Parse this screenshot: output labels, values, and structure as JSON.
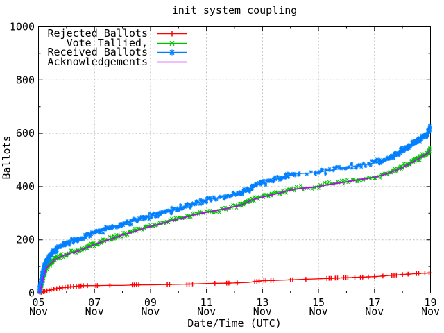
{
  "chart_data": {
    "type": "line",
    "title": "init system coupling",
    "xlabel": "Date/Time (UTC)",
    "ylabel": "Ballots",
    "ylim": [
      0,
      1000
    ],
    "x_range_days": [
      0,
      14
    ],
    "grid": true,
    "grid_color": "#b5b5b5",
    "axis_color": "#000000",
    "legend_position": "top-left-inside",
    "yticks": {
      "major": [
        0,
        200,
        400,
        600,
        800,
        1000
      ],
      "minor": [
        100,
        300,
        500,
        700,
        900
      ]
    },
    "xticks": {
      "major": [
        {
          "day": 0,
          "label": [
            "05",
            "Nov"
          ]
        },
        {
          "day": 2,
          "label": [
            "07",
            "Nov"
          ]
        },
        {
          "day": 4,
          "label": [
            "09",
            "Nov"
          ]
        },
        {
          "day": 6,
          "label": [
            "11",
            "Nov"
          ]
        },
        {
          "day": 8,
          "label": [
            "13",
            "Nov"
          ]
        },
        {
          "day": 10,
          "label": [
            "15",
            "Nov"
          ]
        },
        {
          "day": 12,
          "label": [
            "17",
            "Nov"
          ]
        },
        {
          "day": 14,
          "label": [
            "19",
            "Nov"
          ]
        }
      ],
      "minor_days": [
        1,
        3,
        5,
        7,
        9,
        11,
        13
      ]
    },
    "series": [
      {
        "name": "Rejected Ballots",
        "color": "#ff0000",
        "marker": "plus",
        "style": "line-with-event-markers",
        "points": [
          [
            0,
            0
          ],
          [
            0.1,
            3
          ],
          [
            0.2,
            6
          ],
          [
            0.35,
            10
          ],
          [
            0.5,
            14
          ],
          [
            0.65,
            17
          ],
          [
            0.8,
            20
          ],
          [
            1.0,
            22
          ],
          [
            1.2,
            24
          ],
          [
            1.4,
            26
          ],
          [
            1.6,
            28
          ],
          [
            1.8,
            28
          ],
          [
            2.0,
            28
          ],
          [
            2.5,
            29
          ],
          [
            3.0,
            29
          ],
          [
            3.5,
            31
          ],
          [
            4.0,
            31
          ],
          [
            4.5,
            32
          ],
          [
            5.0,
            33
          ],
          [
            5.5,
            34
          ],
          [
            6.0,
            36
          ],
          [
            6.5,
            37
          ],
          [
            7.0,
            38
          ],
          [
            7.5,
            40
          ],
          [
            7.7,
            43
          ],
          [
            8.0,
            47
          ],
          [
            8.5,
            48
          ],
          [
            9.0,
            50
          ],
          [
            9.5,
            52
          ],
          [
            10.0,
            54
          ],
          [
            10.5,
            56
          ],
          [
            11.0,
            58
          ],
          [
            11.5,
            60
          ],
          [
            12.0,
            62
          ],
          [
            12.3,
            64
          ],
          [
            12.6,
            67
          ],
          [
            13.0,
            70
          ],
          [
            13.3,
            72
          ],
          [
            13.6,
            74
          ],
          [
            14.0,
            76
          ]
        ],
        "marker_days": [
          0.05,
          0.1,
          0.17,
          0.22,
          0.3,
          0.38,
          0.45,
          0.55,
          0.65,
          0.75,
          0.85,
          0.95,
          1.05,
          1.15,
          1.25,
          1.35,
          1.45,
          1.52,
          1.6,
          1.75,
          2.05,
          2.1,
          2.55,
          3.35,
          3.42,
          3.5,
          3.58,
          4.6,
          4.68,
          5.3,
          5.38,
          5.5,
          6.3,
          6.72,
          6.8,
          7.1,
          7.72,
          7.8,
          7.88,
          8.05,
          8.12,
          8.3,
          8.38,
          9.0,
          9.08,
          9.55,
          10.3,
          10.38,
          10.45,
          10.6,
          10.68,
          10.9,
          10.98,
          11.05,
          11.3,
          11.5,
          11.58,
          11.78,
          12.0,
          12.3,
          12.62,
          12.7,
          12.78,
          13.0,
          13.2,
          13.5,
          13.58,
          13.8,
          13.95
        ]
      },
      {
        "name": "Vote Tallied,",
        "color": "#00c000",
        "marker": "cross",
        "style": "dense-band",
        "points": [
          [
            0,
            0
          ],
          [
            0.05,
            10
          ],
          [
            0.1,
            28
          ],
          [
            0.15,
            52
          ],
          [
            0.2,
            72
          ],
          [
            0.25,
            88
          ],
          [
            0.3,
            98
          ],
          [
            0.4,
            110
          ],
          [
            0.5,
            120
          ],
          [
            0.6,
            128
          ],
          [
            0.7,
            134
          ],
          [
            0.85,
            141
          ],
          [
            1.0,
            147
          ],
          [
            1.15,
            152
          ],
          [
            1.3,
            156
          ],
          [
            1.45,
            161
          ],
          [
            1.6,
            167
          ],
          [
            1.75,
            173
          ],
          [
            1.9,
            180
          ],
          [
            2.0,
            185
          ],
          [
            2.2,
            192
          ],
          [
            2.4,
            199
          ],
          [
            2.6,
            206
          ],
          [
            2.8,
            213
          ],
          [
            3.0,
            220
          ],
          [
            3.2,
            226
          ],
          [
            3.4,
            232
          ],
          [
            3.6,
            239
          ],
          [
            3.8,
            246
          ],
          [
            4.0,
            252
          ],
          [
            4.2,
            257
          ],
          [
            4.4,
            263
          ],
          [
            4.6,
            269
          ],
          [
            4.8,
            275
          ],
          [
            5.0,
            280
          ],
          [
            5.2,
            285
          ],
          [
            5.4,
            291
          ],
          [
            5.6,
            296
          ],
          [
            5.8,
            301
          ],
          [
            6.0,
            305
          ],
          [
            6.2,
            309
          ],
          [
            6.4,
            313
          ],
          [
            6.6,
            317
          ],
          [
            6.8,
            321
          ],
          [
            7.0,
            326
          ],
          [
            7.2,
            331
          ],
          [
            7.4,
            340
          ],
          [
            7.6,
            350
          ],
          [
            7.8,
            357
          ],
          [
            8.0,
            362
          ],
          [
            8.2,
            367
          ],
          [
            8.4,
            372
          ],
          [
            8.6,
            377
          ],
          [
            8.8,
            383
          ],
          [
            9.0,
            388
          ],
          [
            9.2,
            392
          ],
          [
            9.4,
            395
          ],
          [
            9.6,
            397
          ],
          [
            9.8,
            399
          ],
          [
            10.0,
            402
          ],
          [
            10.2,
            406
          ],
          [
            10.4,
            410
          ],
          [
            10.6,
            413
          ],
          [
            10.8,
            416
          ],
          [
            11.0,
            419
          ],
          [
            11.2,
            423
          ],
          [
            11.4,
            427
          ],
          [
            11.6,
            430
          ],
          [
            11.8,
            433
          ],
          [
            12.0,
            437
          ],
          [
            12.2,
            442
          ],
          [
            12.4,
            448
          ],
          [
            12.6,
            456
          ],
          [
            12.8,
            464
          ],
          [
            13.0,
            474
          ],
          [
            13.2,
            484
          ],
          [
            13.4,
            495
          ],
          [
            13.6,
            508
          ],
          [
            13.8,
            520
          ],
          [
            13.9,
            527
          ],
          [
            14.0,
            540
          ]
        ]
      },
      {
        "name": "Received Ballots",
        "color": "#0080ff",
        "marker": "star",
        "style": "dense-band",
        "points": [
          [
            0,
            0
          ],
          [
            0.05,
            15
          ],
          [
            0.1,
            42
          ],
          [
            0.15,
            70
          ],
          [
            0.2,
            96
          ],
          [
            0.25,
            112
          ],
          [
            0.3,
            122
          ],
          [
            0.4,
            140
          ],
          [
            0.5,
            155
          ],
          [
            0.6,
            163
          ],
          [
            0.7,
            170
          ],
          [
            0.85,
            179
          ],
          [
            1.0,
            188
          ],
          [
            1.15,
            194
          ],
          [
            1.3,
            198
          ],
          [
            1.45,
            204
          ],
          [
            1.6,
            210
          ],
          [
            1.75,
            216
          ],
          [
            1.9,
            221
          ],
          [
            2.0,
            225
          ],
          [
            2.2,
            232
          ],
          [
            2.4,
            240
          ],
          [
            2.6,
            247
          ],
          [
            2.8,
            252
          ],
          [
            3.0,
            257
          ],
          [
            3.2,
            263
          ],
          [
            3.4,
            270
          ],
          [
            3.6,
            276
          ],
          [
            3.8,
            282
          ],
          [
            4.0,
            288
          ],
          [
            4.2,
            293
          ],
          [
            4.4,
            300
          ],
          [
            4.6,
            306
          ],
          [
            4.8,
            312
          ],
          [
            5.0,
            318
          ],
          [
            5.2,
            324
          ],
          [
            5.4,
            331
          ],
          [
            5.6,
            337
          ],
          [
            5.8,
            343
          ],
          [
            6.0,
            348
          ],
          [
            6.2,
            353
          ],
          [
            6.4,
            358
          ],
          [
            6.6,
            362
          ],
          [
            6.8,
            366
          ],
          [
            7.0,
            370
          ],
          [
            7.2,
            375
          ],
          [
            7.4,
            385
          ],
          [
            7.6,
            395
          ],
          [
            7.8,
            407
          ],
          [
            8.0,
            413
          ],
          [
            8.2,
            419
          ],
          [
            8.4,
            425
          ],
          [
            8.6,
            430
          ],
          [
            8.8,
            437
          ],
          [
            9.0,
            443
          ],
          [
            9.2,
            447
          ],
          [
            9.4,
            449
          ],
          [
            9.6,
            450
          ],
          [
            9.8,
            451
          ],
          [
            10.0,
            453
          ],
          [
            10.2,
            457
          ],
          [
            10.4,
            461
          ],
          [
            10.6,
            464
          ],
          [
            10.8,
            467
          ],
          [
            11.0,
            470
          ],
          [
            11.2,
            475
          ],
          [
            11.4,
            479
          ],
          [
            11.6,
            482
          ],
          [
            11.8,
            485
          ],
          [
            12.0,
            489
          ],
          [
            12.2,
            495
          ],
          [
            12.4,
            502
          ],
          [
            12.6,
            511
          ],
          [
            12.8,
            522
          ],
          [
            13.0,
            535
          ],
          [
            13.2,
            548
          ],
          [
            13.4,
            562
          ],
          [
            13.6,
            578
          ],
          [
            13.8,
            592
          ],
          [
            13.9,
            600
          ],
          [
            14.0,
            622
          ]
        ]
      },
      {
        "name": "Acknowledgements",
        "color": "#c000ff",
        "marker": "none",
        "style": "line",
        "points": [
          [
            0,
            0
          ],
          [
            0.05,
            9
          ],
          [
            0.1,
            26
          ],
          [
            0.15,
            50
          ],
          [
            0.2,
            70
          ],
          [
            0.25,
            86
          ],
          [
            0.3,
            96
          ],
          [
            0.4,
            108
          ],
          [
            0.5,
            118
          ],
          [
            0.6,
            126
          ],
          [
            0.7,
            132
          ],
          [
            0.85,
            139
          ],
          [
            1.0,
            145
          ],
          [
            1.15,
            150
          ],
          [
            1.3,
            154
          ],
          [
            1.45,
            159
          ],
          [
            1.6,
            165
          ],
          [
            1.75,
            171
          ],
          [
            1.9,
            178
          ],
          [
            2.0,
            183
          ],
          [
            2.2,
            190
          ],
          [
            2.4,
            197
          ],
          [
            2.6,
            204
          ],
          [
            2.8,
            211
          ],
          [
            3.0,
            218
          ],
          [
            3.2,
            224
          ],
          [
            3.4,
            230
          ],
          [
            3.6,
            237
          ],
          [
            3.8,
            244
          ],
          [
            4.0,
            250
          ],
          [
            4.2,
            255
          ],
          [
            4.4,
            261
          ],
          [
            4.6,
            267
          ],
          [
            4.8,
            273
          ],
          [
            5.0,
            278
          ],
          [
            5.2,
            283
          ],
          [
            5.4,
            289
          ],
          [
            5.6,
            294
          ],
          [
            5.8,
            299
          ],
          [
            6.0,
            303
          ],
          [
            6.2,
            307
          ],
          [
            6.4,
            311
          ],
          [
            6.6,
            315
          ],
          [
            6.8,
            319
          ],
          [
            7.0,
            324
          ],
          [
            7.2,
            329
          ],
          [
            7.4,
            338
          ],
          [
            7.6,
            348
          ],
          [
            7.8,
            355
          ],
          [
            8.0,
            360
          ],
          [
            8.2,
            365
          ],
          [
            8.4,
            370
          ],
          [
            8.6,
            375
          ],
          [
            8.8,
            381
          ],
          [
            9.0,
            386
          ],
          [
            9.2,
            390
          ],
          [
            9.4,
            393
          ],
          [
            9.6,
            395
          ],
          [
            9.8,
            397
          ],
          [
            10.0,
            400
          ],
          [
            10.2,
            404
          ],
          [
            10.4,
            408
          ],
          [
            10.6,
            411
          ],
          [
            10.8,
            414
          ],
          [
            11.0,
            417
          ],
          [
            11.2,
            421
          ],
          [
            11.4,
            425
          ],
          [
            11.6,
            428
          ],
          [
            11.8,
            431
          ],
          [
            12.0,
            435
          ],
          [
            12.2,
            440
          ],
          [
            12.4,
            446
          ],
          [
            12.6,
            454
          ],
          [
            12.8,
            462
          ],
          [
            13.0,
            472
          ],
          [
            13.2,
            482
          ],
          [
            13.4,
            493
          ],
          [
            13.6,
            506
          ],
          [
            13.8,
            518
          ],
          [
            13.9,
            525
          ],
          [
            14.0,
            538
          ]
        ]
      }
    ]
  }
}
